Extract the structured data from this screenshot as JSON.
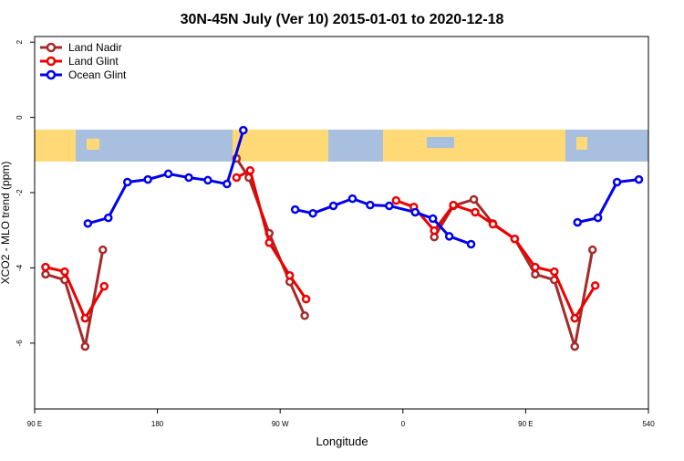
{
  "chart_data": {
    "type": "line",
    "title": "30N-45N July (Ver 10)   2015-01-01 to 2020-12-18",
    "xlabel": "Longitude",
    "ylabel": "XCO2 - MLO trend (ppm)",
    "xlim": [
      90,
      540
    ],
    "xticks": [
      {
        "value": 90,
        "label": "90 E"
      },
      180,
      {
        "value": 270,
        "label": "90 W"
      },
      {
        "value": 360,
        "label": "0"
      },
      {
        "value": 450,
        "label": "90 E"
      },
      540
    ],
    "ylim": [
      -7.75,
      2.15
    ],
    "yticks": [
      2,
      0,
      -2,
      -4,
      -6
    ],
    "legend": "upper left",
    "series": [
      {
        "name": "Land Nadir",
        "color": "#a52a2a",
        "x": [
          98,
          112,
          127,
          140,
          null,
          238,
          247,
          262,
          277,
          288,
          null,
          383,
          397,
          412,
          426,
          442,
          457,
          471,
          486,
          499
        ],
        "values": [
          -4.17,
          -4.32,
          -6.09,
          -3.52,
          null,
          -1.09,
          -1.6,
          -3.08,
          -4.37,
          -5.27,
          null,
          -3.18,
          -2.35,
          -2.18,
          -2.82,
          -3.23,
          -4.17,
          -4.32,
          -6.09,
          -3.52
        ]
      },
      {
        "name": "Land Glint",
        "color": "#ee0000",
        "x": [
          98,
          112,
          127,
          141,
          null,
          238,
          248,
          262,
          277,
          289,
          null,
          355,
          368,
          383,
          397,
          413,
          426,
          442,
          457,
          471,
          486,
          501
        ],
        "values": [
          -3.98,
          -4.1,
          -5.34,
          -4.49,
          null,
          -1.6,
          -1.41,
          -3.33,
          -4.2,
          -4.83,
          null,
          -2.21,
          -2.38,
          -3.01,
          -2.33,
          -2.52,
          -2.84,
          -3.23,
          -3.98,
          -4.1,
          -5.34,
          -4.47
        ]
      },
      {
        "name": "Ocean Glint",
        "color": "#0000ee",
        "x": [
          129,
          144,
          158,
          173,
          188,
          203,
          217,
          231,
          243,
          null,
          281,
          294,
          309,
          323,
          336,
          350,
          369,
          382,
          394,
          410,
          null,
          488,
          503,
          517,
          533
        ],
        "values": [
          -2.82,
          -2.67,
          -1.72,
          -1.65,
          -1.5,
          -1.6,
          -1.67,
          -1.77,
          -0.34,
          null,
          -2.45,
          -2.55,
          -2.35,
          -2.16,
          -2.33,
          -2.35,
          -2.52,
          -2.69,
          -3.16,
          -3.37,
          null,
          -2.79,
          -2.67,
          -1.72,
          -1.65
        ]
      }
    ]
  }
}
